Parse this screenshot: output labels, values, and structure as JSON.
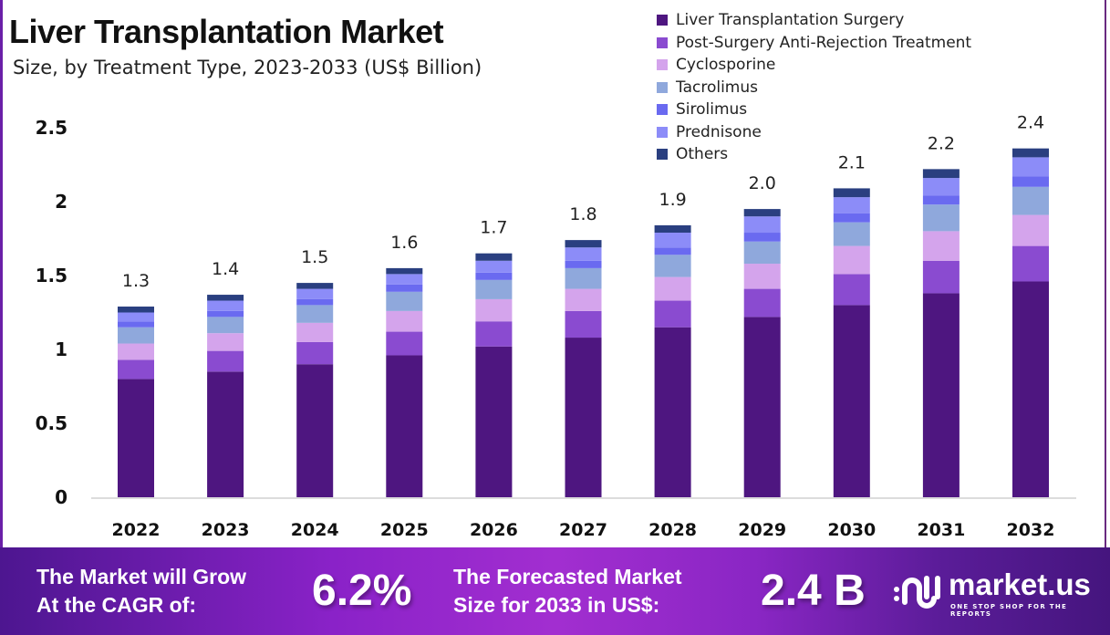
{
  "chart_data": {
    "type": "bar",
    "stacked": true,
    "title": "Liver Transplantation Market",
    "subtitle": "Size, by Treatment Type, 2023-2033 (US$ Billion)",
    "xlabel": "",
    "ylabel": "",
    "ylim": [
      0,
      2.5
    ],
    "yticks": [
      "0",
      "0.5",
      "1",
      "1.5",
      "2",
      "2.5"
    ],
    "ytick_values": [
      0,
      0.5,
      1,
      1.5,
      2,
      2.5
    ],
    "grid": false,
    "legend_position": "top-right",
    "categories": [
      "2022",
      "2023",
      "2024",
      "2025",
      "2026",
      "2027",
      "2028",
      "2029",
      "2030",
      "2031",
      "2032"
    ],
    "totals_labels": [
      "1.3",
      "1.4",
      "1.5",
      "1.6",
      "1.7",
      "1.8",
      "1.9",
      "2.0",
      "2.1",
      "2.2",
      "2.4"
    ],
    "series": [
      {
        "name": "Liver Transplantation Surgery",
        "color": "#4e1680",
        "values": [
          0.8,
          0.85,
          0.9,
          0.96,
          1.02,
          1.08,
          1.15,
          1.22,
          1.3,
          1.38,
          1.46
        ]
      },
      {
        "name": "Post-Surgery Anti-Rejection Treatment",
        "color": "#8a4bd0",
        "values": [
          0.13,
          0.14,
          0.15,
          0.16,
          0.17,
          0.18,
          0.18,
          0.19,
          0.21,
          0.22,
          0.24
        ]
      },
      {
        "name": "Cyclosporine",
        "color": "#d4a4ec",
        "values": [
          0.11,
          0.12,
          0.13,
          0.14,
          0.15,
          0.15,
          0.16,
          0.17,
          0.19,
          0.2,
          0.21
        ]
      },
      {
        "name": "Tacrolimus",
        "color": "#8fa8dc",
        "values": [
          0.11,
          0.11,
          0.12,
          0.13,
          0.13,
          0.14,
          0.15,
          0.15,
          0.16,
          0.18,
          0.19
        ]
      },
      {
        "name": "Sirolimus",
        "color": "#6a6af0",
        "values": [
          0.04,
          0.04,
          0.04,
          0.05,
          0.05,
          0.05,
          0.05,
          0.06,
          0.06,
          0.06,
          0.07
        ]
      },
      {
        "name": "Prednisone",
        "color": "#8c8cf8",
        "values": [
          0.06,
          0.07,
          0.07,
          0.07,
          0.08,
          0.09,
          0.1,
          0.11,
          0.11,
          0.12,
          0.13
        ]
      },
      {
        "name": "Others",
        "color": "#2a3f80",
        "values": [
          0.04,
          0.04,
          0.04,
          0.04,
          0.05,
          0.05,
          0.05,
          0.05,
          0.06,
          0.06,
          0.06
        ]
      }
    ]
  },
  "footer": {
    "cagr_text_1": "The Market will Grow",
    "cagr_text_2": "At the CAGR of:",
    "cagr_value": "6.2%",
    "forecast_text_1": "The Forecasted Market",
    "forecast_text_2": "Size for 2033 in US$:",
    "forecast_value": "2.4 B",
    "logo_name": "market.us",
    "logo_tagline": "ONE STOP SHOP FOR THE REPORTS"
  }
}
